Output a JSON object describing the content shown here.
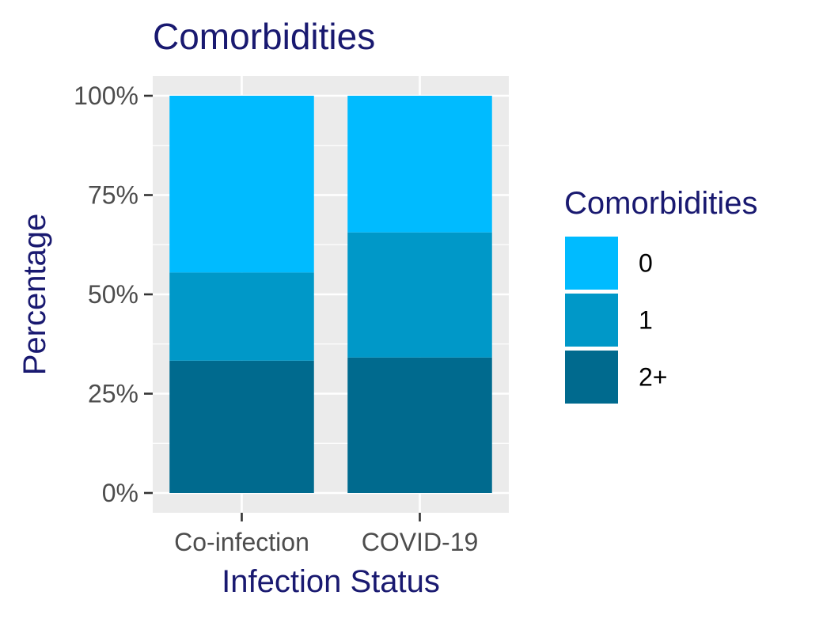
{
  "chart_data": {
    "type": "bar",
    "stacked": true,
    "title": "Comorbidities",
    "xlabel": "Infection Status",
    "ylabel": "Percentage",
    "categories": [
      "Co-infection",
      "COVID-19"
    ],
    "ylim": [
      0,
      100
    ],
    "yticks": [
      "0%",
      "25%",
      "50%",
      "75%",
      "100%"
    ],
    "series": [
      {
        "name": "2+",
        "color": "#006A8E",
        "values": [
          33.3,
          34.1
        ]
      },
      {
        "name": "1",
        "color": "#0098C8",
        "values": [
          22.2,
          31.5
        ]
      },
      {
        "name": "0",
        "color": "#00BBFF",
        "values": [
          44.5,
          34.4
        ]
      }
    ],
    "legend": {
      "title": "Comorbidities",
      "position": "right",
      "items": [
        "0",
        "1",
        "2+"
      ]
    },
    "panel_background": "#EBEBEB",
    "grid": true
  }
}
